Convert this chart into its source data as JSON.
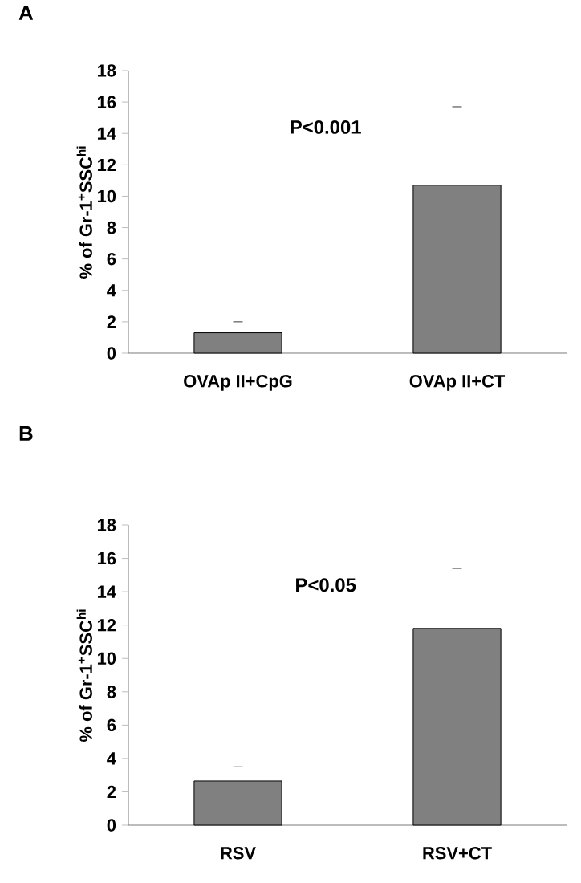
{
  "chart_data": [
    {
      "type": "bar",
      "title": "A",
      "ylabel": "% of Gr-1$^{+}$SSC$^{hi}$",
      "categories": [
        "OVAp II+CpG",
        "OVAp II+CT"
      ],
      "values": [
        1.3,
        10.7
      ],
      "errors": [
        0.7,
        5.0
      ],
      "color": "#808080",
      "ylim": [
        0,
        18
      ],
      "yticks": [
        0,
        2,
        4,
        6,
        8,
        10,
        12,
        14,
        16,
        18
      ],
      "annotations": [
        "P<0.001"
      ]
    },
    {
      "type": "bar",
      "title": "B",
      "ylabel": "% of Gr-1$^{+}$SSC$^{hi}$",
      "categories": [
        "RSV",
        "RSV+CT"
      ],
      "values": [
        2.65,
        11.8
      ],
      "errors": [
        0.85,
        3.6
      ],
      "color": "#808080",
      "ylim": [
        0,
        18
      ],
      "yticks": [
        0,
        2,
        4,
        6,
        8,
        10,
        12,
        14,
        16,
        18
      ],
      "annotations": [
        "P<0.05"
      ]
    }
  ]
}
